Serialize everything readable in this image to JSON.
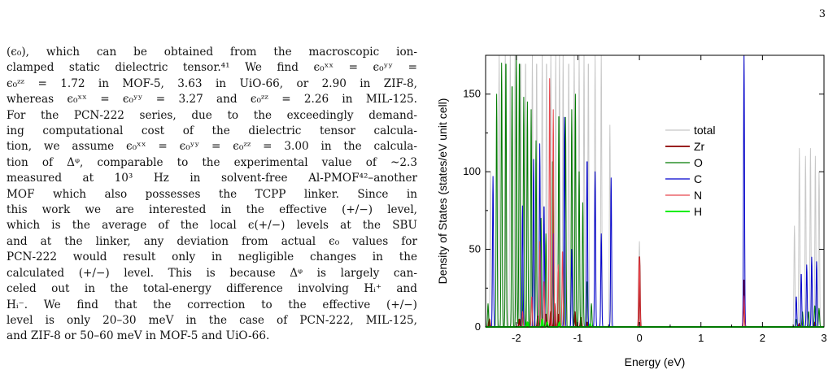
{
  "page": {
    "number": "3"
  },
  "paragraph_lines": [
    "(ϵ₀), which can be obtained from the macroscopic ion-",
    "clamped static dielectric tensor.⁴¹ We find ϵ₀ˣˣ = ϵ₀ʸʸ =",
    "ϵ₀ᶻᶻ = 1.72 in MOF-5, 3.63 in UiO-66, or 2.90 in ZIF-8,",
    "whereas ϵ₀ˣˣ = ϵ₀ʸʸ = 3.27 and ϵ₀ᶻᶻ = 2.26 in MIL-125.",
    "For the PCN-222 series, due to the exceedingly demand-",
    "ing computational cost of the dielectric tensor calcula-",
    "tion, we assume ϵ₀ˣˣ = ϵ₀ʸʸ = ϵ₀ᶻᶻ = 3.00 in the calcula-",
    "tion of Δᵠ, comparable to the experimental value of ~2.3",
    "measured at 10³ Hz in solvent-free Al-PMOF⁴²–another",
    "MOF which also possesses the TCPP linker.  Since in",
    "this work we are interested in the effective (+/−) level,",
    "which is the average of the local ϵ(+/−) levels at the SBU",
    "and at the linker, any deviation from actual ϵ₀ values for",
    "PCN-222 would result only in negligible changes in the",
    "calculated (+/−) level. This is because Δᵠ is largely can-",
    "celed out in the total-energy difference involving Hᵢ⁺ and",
    "Hᵢ⁻.  We find that the correction to the effective (+/−)",
    "level is only 20–30 meV in the case of PCN-222, MIL-125,",
    "and ZIF-8 or 50–60 meV in MOF-5 and UiO-66."
  ],
  "chart_data": {
    "type": "line",
    "title": "",
    "xlabel": "Energy (eV)",
    "ylabel": "Density of States (states/eV unit cell)",
    "xlim": [
      -2.5,
      3.0
    ],
    "ylim": [
      0,
      175
    ],
    "x_ticks": [
      -2,
      -1,
      0,
      1,
      2,
      3
    ],
    "y_ticks": [
      0,
      50,
      100,
      150
    ],
    "x_tick_labels": [
      "-2",
      "-1",
      "0",
      "1",
      "2",
      "3"
    ],
    "y_tick_labels": [
      "0",
      "50",
      "100",
      "150"
    ],
    "legend_position": "right",
    "grid": false,
    "series": [
      {
        "name": "total",
        "color": "#c8c8c8",
        "width": 1.0,
        "peaks": [
          [
            -2.42,
            100
          ],
          [
            -2.28,
            175
          ],
          [
            -2.18,
            175
          ],
          [
            -2.1,
            175
          ],
          [
            -2.02,
            175
          ],
          [
            -1.93,
            175
          ],
          [
            -1.85,
            175
          ],
          [
            -1.74,
            175
          ],
          [
            -1.67,
            175
          ],
          [
            -1.58,
            175
          ],
          [
            -1.51,
            175
          ],
          [
            -1.44,
            175
          ],
          [
            -1.36,
            175
          ],
          [
            -1.3,
            175
          ],
          [
            -1.24,
            175
          ],
          [
            -1.15,
            175
          ],
          [
            -1.06,
            175
          ],
          [
            -0.98,
            175
          ],
          [
            -0.9,
            175
          ],
          [
            -0.83,
            175
          ],
          [
            -0.72,
            175
          ],
          [
            -0.62,
            175
          ],
          [
            -0.48,
            130
          ],
          [
            0.0,
            55
          ],
          [
            1.7,
            175
          ],
          [
            2.52,
            65
          ],
          [
            2.6,
            115
          ],
          [
            2.7,
            110
          ],
          [
            2.78,
            115
          ],
          [
            2.86,
            110
          ],
          [
            2.92,
            100
          ]
        ]
      },
      {
        "name": "Zr",
        "color": "#8b0000",
        "width": 1.8,
        "peaks": [
          [
            -2.44,
            5
          ],
          [
            -1.95,
            5
          ],
          [
            -1.65,
            7
          ],
          [
            -1.52,
            8
          ],
          [
            -1.44,
            10
          ],
          [
            -1.38,
            15
          ],
          [
            -1.32,
            8
          ],
          [
            -1.05,
            10
          ],
          [
            -0.95,
            6
          ],
          [
            -0.85,
            3
          ],
          [
            0.0,
            45
          ],
          [
            1.7,
            30
          ],
          [
            2.6,
            2
          ],
          [
            2.85,
            3
          ]
        ]
      },
      {
        "name": "O",
        "color": "#007a00",
        "width": 1.0,
        "peaks": [
          [
            -2.46,
            15
          ],
          [
            -2.32,
            150
          ],
          [
            -2.24,
            170
          ],
          [
            -2.17,
            175
          ],
          [
            -2.07,
            160
          ],
          [
            -2.0,
            175
          ],
          [
            -1.95,
            175
          ],
          [
            -1.88,
            148
          ],
          [
            -1.82,
            145
          ],
          [
            -1.76,
            140
          ],
          [
            -1.68,
            120
          ],
          [
            -1.6,
            70
          ],
          [
            -1.52,
            60
          ],
          [
            -1.41,
            110
          ],
          [
            -1.31,
            140
          ],
          [
            -1.2,
            135
          ],
          [
            -1.1,
            140
          ],
          [
            -1.04,
            150
          ],
          [
            -0.98,
            100
          ],
          [
            -0.92,
            80
          ],
          [
            -0.85,
            30
          ],
          [
            -0.78,
            15
          ],
          [
            2.55,
            5
          ],
          [
            2.65,
            10
          ],
          [
            2.75,
            10
          ],
          [
            2.85,
            14
          ],
          [
            2.92,
            12
          ]
        ]
      },
      {
        "name": "C",
        "color": "#0000cd",
        "width": 1.0,
        "peaks": [
          [
            -2.38,
            97
          ],
          [
            -1.9,
            78
          ],
          [
            -1.72,
            108
          ],
          [
            -1.62,
            118
          ],
          [
            -1.55,
            80
          ],
          [
            -1.4,
            60
          ],
          [
            -1.22,
            135
          ],
          [
            -1.1,
            50
          ],
          [
            -0.85,
            110
          ],
          [
            -0.72,
            100
          ],
          [
            -0.62,
            60
          ],
          [
            -0.46,
            96
          ],
          [
            1.7,
            175
          ],
          [
            2.55,
            20
          ],
          [
            2.63,
            35
          ],
          [
            2.72,
            40
          ],
          [
            2.8,
            45
          ],
          [
            2.88,
            42
          ]
        ]
      },
      {
        "name": "N",
        "color": "#e8464d",
        "width": 1.0,
        "peaks": [
          [
            -1.9,
            10
          ],
          [
            -1.75,
            20
          ],
          [
            -1.62,
            55
          ],
          [
            -1.55,
            30
          ],
          [
            -1.46,
            160
          ],
          [
            -1.4,
            140
          ],
          [
            -1.32,
            40
          ],
          [
            -1.25,
            50
          ],
          [
            0.0,
            45
          ],
          [
            1.7,
            20
          ]
        ]
      },
      {
        "name": "H",
        "color": "#00ee00",
        "width": 2.0,
        "peaks": [
          [
            -1.82,
            3
          ],
          [
            -1.58,
            5
          ],
          [
            -1.5,
            3
          ],
          [
            -1.3,
            3
          ],
          [
            -0.8,
            2
          ]
        ]
      }
    ]
  }
}
